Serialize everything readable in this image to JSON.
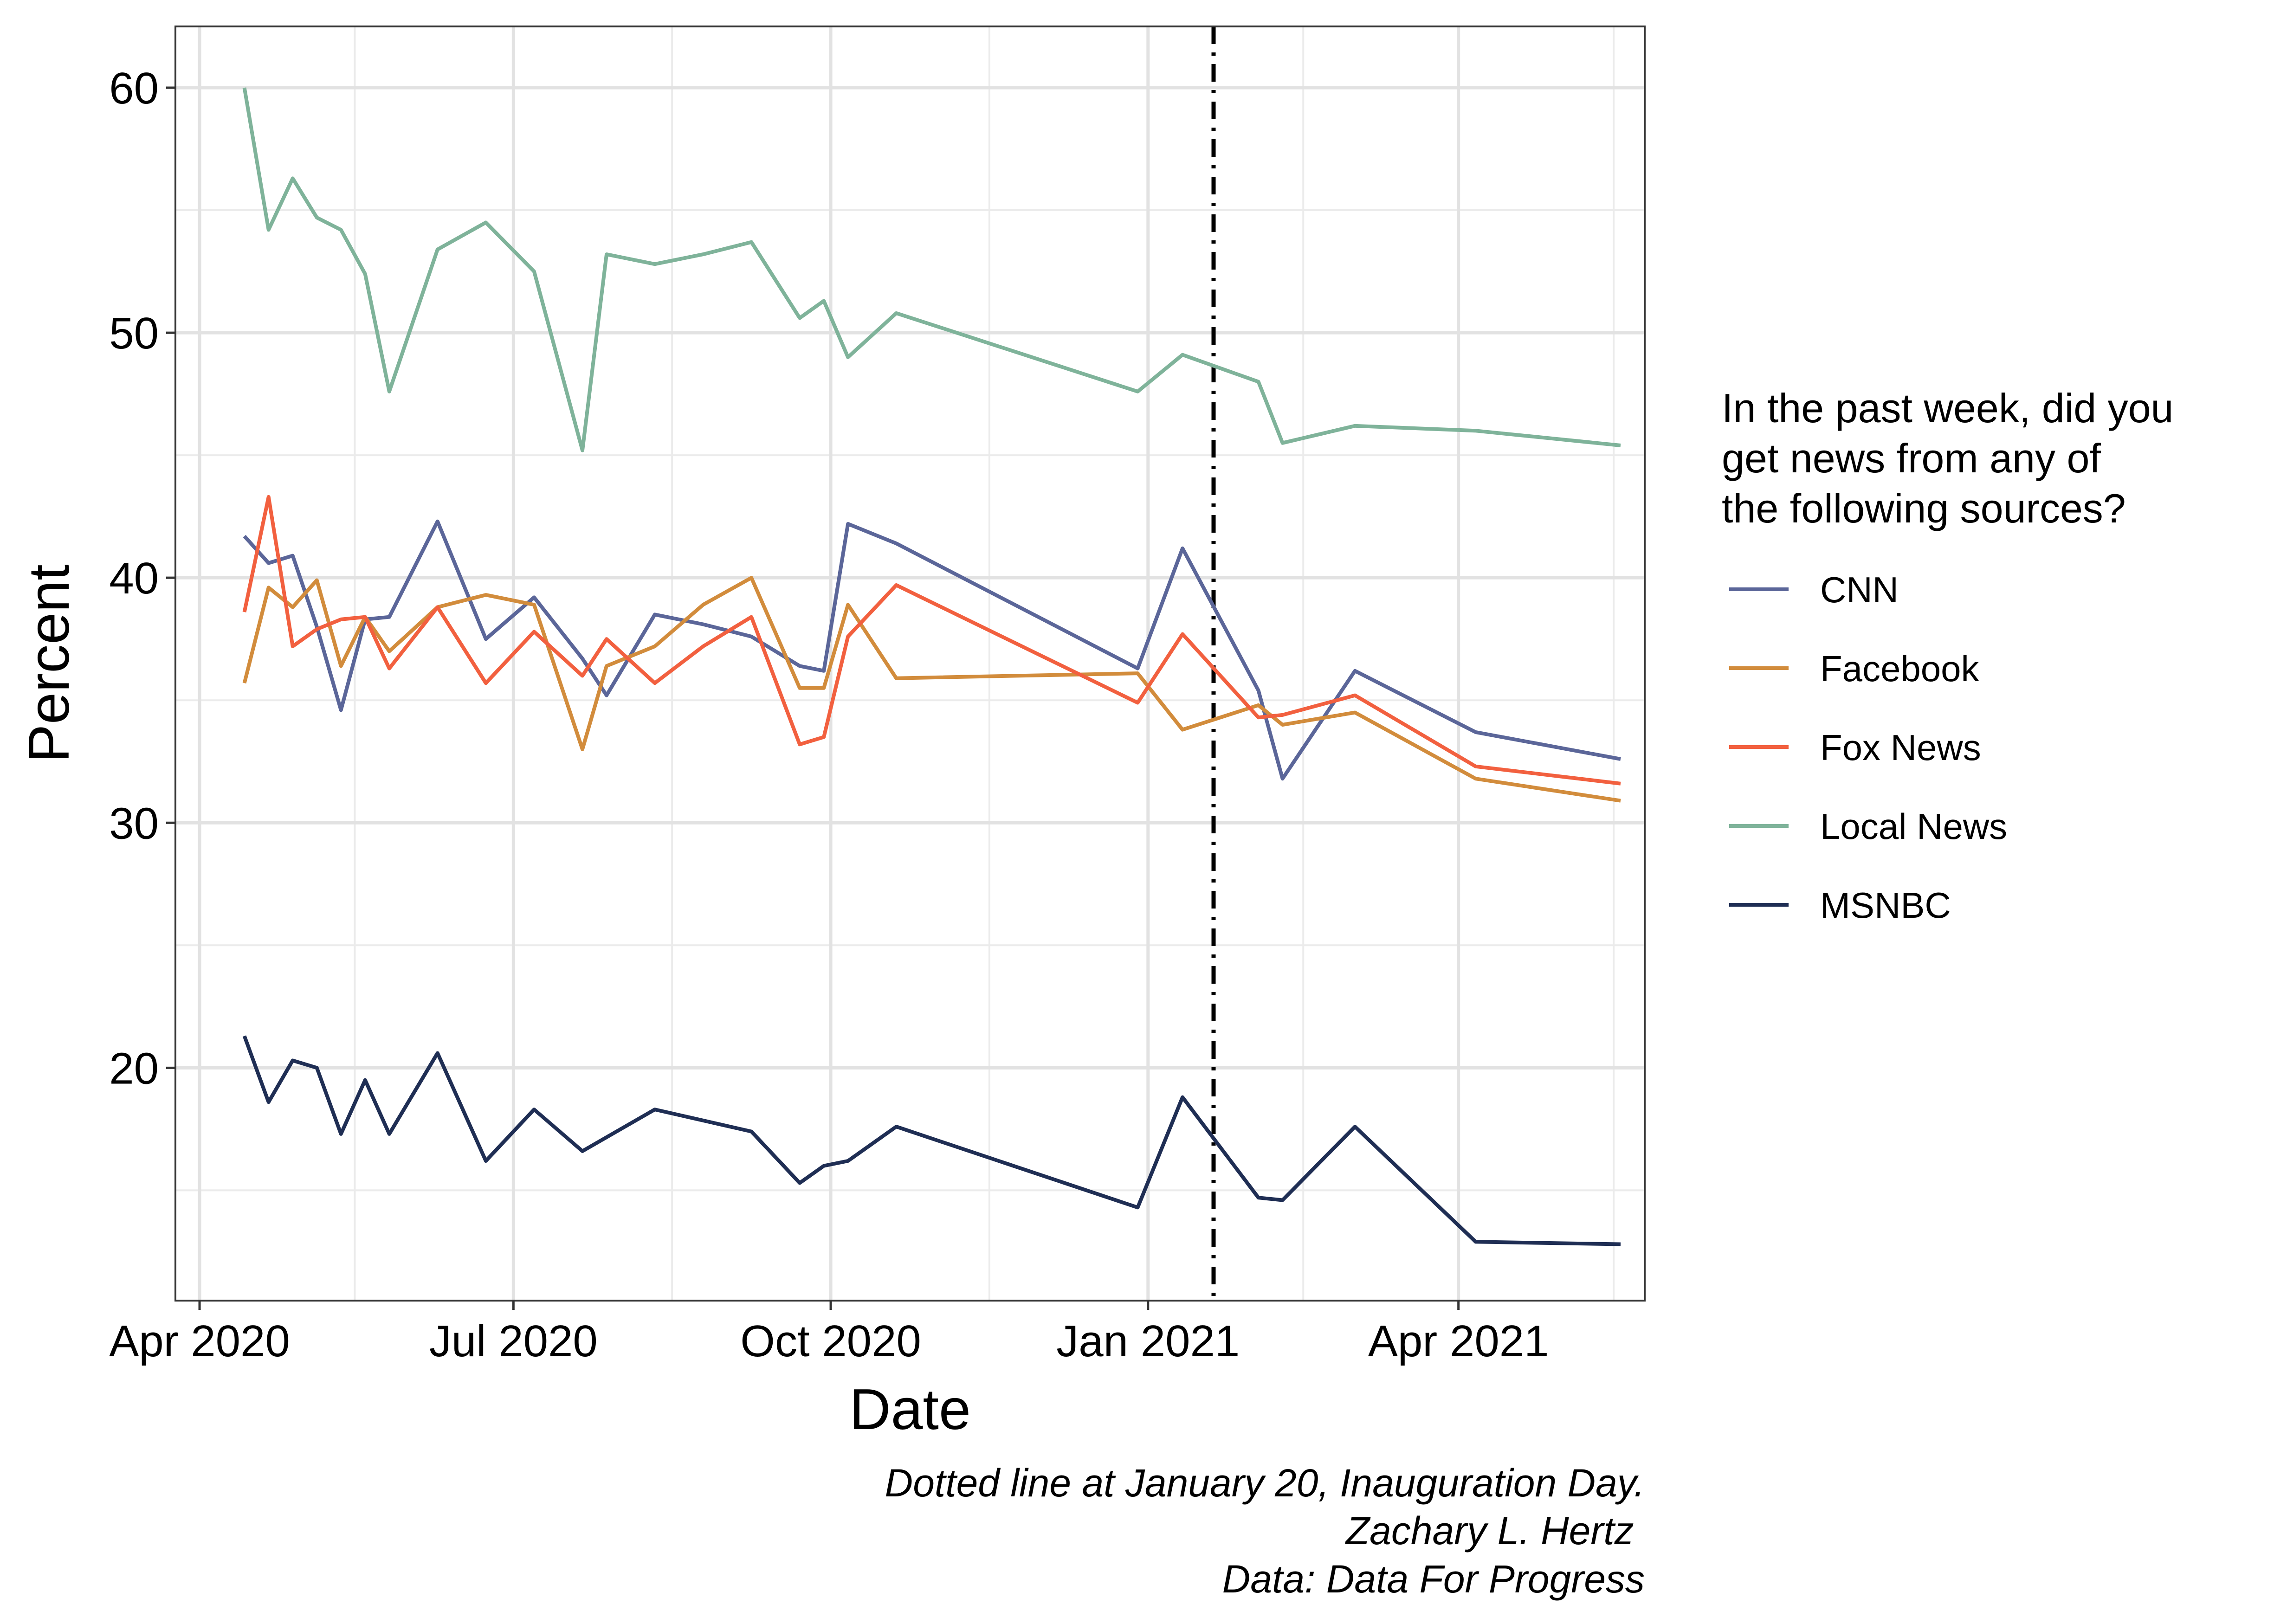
{
  "chart_data": {
    "type": "line",
    "title": "",
    "xlabel": "Date",
    "ylabel": "Percent",
    "x_axis_type": "date",
    "xlim": [
      "2020-03-25",
      "2021-05-25"
    ],
    "ylim": [
      10.5,
      62.5
    ],
    "x_ticks": [
      {
        "date": "2020-04-01",
        "label": "Apr 2020"
      },
      {
        "date": "2020-07-01",
        "label": "Jul 2020"
      },
      {
        "date": "2020-10-01",
        "label": "Oct 2020"
      },
      {
        "date": "2021-01-01",
        "label": "Jan 2021"
      },
      {
        "date": "2021-04-01",
        "label": "Apr 2021"
      }
    ],
    "x_minor_ticks": [
      "2020-05-16",
      "2020-08-16",
      "2020-11-16",
      "2021-02-15",
      "2021-05-16"
    ],
    "y_ticks": [
      20,
      30,
      40,
      50,
      60
    ],
    "y_minor_ticks": [
      15,
      25,
      35,
      45,
      55
    ],
    "grid": true,
    "legend": {
      "title": "In the past week, did you get news from any of the following sources?",
      "title_lines": [
        "In the past week, did you",
        "get news from any of",
        "the following sources?"
      ],
      "position": "right"
    },
    "reference_line": {
      "date": "2021-01-20",
      "style": "dot-dash",
      "color": "#000000"
    },
    "annotations": [
      "Dotted line at January 20, Inauguration Day.",
      "Zachary L. Hertz ",
      "Data: Data For Progress"
    ],
    "series": [
      {
        "name": "CNN",
        "color": "#5B6699",
        "points": [
          [
            "2020-04-14",
            41.7
          ],
          [
            "2020-04-21",
            40.6
          ],
          [
            "2020-04-28",
            40.9
          ],
          [
            "2020-05-05",
            38.0
          ],
          [
            "2020-05-12",
            34.6
          ],
          [
            "2020-05-19",
            38.3
          ],
          [
            "2020-05-26",
            38.4
          ],
          [
            "2020-06-09",
            42.3
          ],
          [
            "2020-06-23",
            37.5
          ],
          [
            "2020-07-07",
            39.2
          ],
          [
            "2020-07-21",
            36.7
          ],
          [
            "2020-07-28",
            35.2
          ],
          [
            "2020-08-11",
            38.5
          ],
          [
            "2020-08-25",
            38.1
          ],
          [
            "2020-09-08",
            37.6
          ],
          [
            "2020-09-22",
            36.4
          ],
          [
            "2020-09-29",
            36.2
          ],
          [
            "2020-10-06",
            42.2
          ],
          [
            "2020-10-20",
            41.4
          ],
          [
            "2020-12-29",
            36.3
          ],
          [
            "2021-01-11",
            41.2
          ],
          [
            "2021-02-02",
            35.4
          ],
          [
            "2021-02-09",
            31.8
          ],
          [
            "2021-03-02",
            36.2
          ],
          [
            "2021-04-06",
            33.7
          ],
          [
            "2021-05-18",
            32.6
          ]
        ]
      },
      {
        "name": "Facebook",
        "color": "#D28C3C",
        "points": [
          [
            "2020-04-14",
            35.7
          ],
          [
            "2020-04-21",
            39.6
          ],
          [
            "2020-04-28",
            38.8
          ],
          [
            "2020-05-05",
            39.9
          ],
          [
            "2020-05-12",
            36.4
          ],
          [
            "2020-05-19",
            38.4
          ],
          [
            "2020-05-26",
            37.0
          ],
          [
            "2020-06-09",
            38.8
          ],
          [
            "2020-06-23",
            39.3
          ],
          [
            "2020-07-07",
            38.9
          ],
          [
            "2020-07-21",
            33.0
          ],
          [
            "2020-07-28",
            36.4
          ],
          [
            "2020-08-11",
            37.2
          ],
          [
            "2020-08-25",
            38.9
          ],
          [
            "2020-09-08",
            40.0
          ],
          [
            "2020-09-22",
            35.5
          ],
          [
            "2020-09-29",
            35.5
          ],
          [
            "2020-10-06",
            38.9
          ],
          [
            "2020-10-20",
            35.9
          ],
          [
            "2020-12-29",
            36.1
          ],
          [
            "2021-01-11",
            33.8
          ],
          [
            "2021-02-02",
            34.8
          ],
          [
            "2021-02-09",
            34.0
          ],
          [
            "2021-03-02",
            34.5
          ],
          [
            "2021-04-06",
            31.8
          ],
          [
            "2021-05-18",
            30.9
          ]
        ]
      },
      {
        "name": "Fox News",
        "color": "#F2603F",
        "points": [
          [
            "2020-04-14",
            38.6
          ],
          [
            "2020-04-21",
            43.3
          ],
          [
            "2020-04-28",
            37.2
          ],
          [
            "2020-05-05",
            37.9
          ],
          [
            "2020-05-12",
            38.3
          ],
          [
            "2020-05-19",
            38.4
          ],
          [
            "2020-05-26",
            36.3
          ],
          [
            "2020-06-09",
            38.8
          ],
          [
            "2020-06-23",
            35.7
          ],
          [
            "2020-07-07",
            37.8
          ],
          [
            "2020-07-21",
            36.0
          ],
          [
            "2020-07-28",
            37.5
          ],
          [
            "2020-08-11",
            35.7
          ],
          [
            "2020-08-25",
            37.2
          ],
          [
            "2020-09-08",
            38.4
          ],
          [
            "2020-09-22",
            33.2
          ],
          [
            "2020-09-29",
            33.5
          ],
          [
            "2020-10-06",
            37.6
          ],
          [
            "2020-10-20",
            39.7
          ],
          [
            "2020-12-29",
            34.9
          ],
          [
            "2021-01-11",
            37.7
          ],
          [
            "2021-02-02",
            34.3
          ],
          [
            "2021-02-09",
            34.4
          ],
          [
            "2021-03-02",
            35.2
          ],
          [
            "2021-04-06",
            32.3
          ],
          [
            "2021-05-18",
            31.6
          ]
        ]
      },
      {
        "name": "Local News",
        "color": "#7FB39A",
        "points": [
          [
            "2020-04-14",
            60.0
          ],
          [
            "2020-04-21",
            54.2
          ],
          [
            "2020-04-28",
            56.3
          ],
          [
            "2020-05-05",
            54.7
          ],
          [
            "2020-05-12",
            54.2
          ],
          [
            "2020-05-19",
            52.4
          ],
          [
            "2020-05-26",
            47.6
          ],
          [
            "2020-06-09",
            53.4
          ],
          [
            "2020-06-23",
            54.5
          ],
          [
            "2020-07-07",
            52.5
          ],
          [
            "2020-07-21",
            45.2
          ],
          [
            "2020-07-28",
            53.2
          ],
          [
            "2020-08-11",
            52.8
          ],
          [
            "2020-08-25",
            53.2
          ],
          [
            "2020-09-08",
            53.7
          ],
          [
            "2020-09-22",
            50.6
          ],
          [
            "2020-09-29",
            51.3
          ],
          [
            "2020-10-06",
            49.0
          ],
          [
            "2020-10-20",
            50.8
          ],
          [
            "2020-12-29",
            47.6
          ],
          [
            "2021-01-11",
            49.1
          ],
          [
            "2021-02-02",
            48.0
          ],
          [
            "2021-02-09",
            45.5
          ],
          [
            "2021-03-02",
            46.2
          ],
          [
            "2021-04-06",
            46.0
          ],
          [
            "2021-05-18",
            45.4
          ]
        ]
      },
      {
        "name": "MSNBC",
        "color": "#1F2E54",
        "points": [
          [
            "2020-04-14",
            21.3
          ],
          [
            "2020-04-21",
            18.6
          ],
          [
            "2020-04-28",
            20.3
          ],
          [
            "2020-05-05",
            20.0
          ],
          [
            "2020-05-12",
            17.3
          ],
          [
            "2020-05-19",
            19.5
          ],
          [
            "2020-05-26",
            17.3
          ],
          [
            "2020-06-09",
            20.6
          ],
          [
            "2020-06-23",
            16.2
          ],
          [
            "2020-07-07",
            18.3
          ],
          [
            "2020-07-21",
            16.6
          ],
          [
            "2020-08-11",
            18.3
          ],
          [
            "2020-09-08",
            17.4
          ],
          [
            "2020-09-22",
            15.3
          ],
          [
            "2020-09-29",
            16.0
          ],
          [
            "2020-10-06",
            16.2
          ],
          [
            "2020-10-20",
            17.6
          ],
          [
            "2020-12-29",
            14.3
          ],
          [
            "2021-01-11",
            18.8
          ],
          [
            "2021-02-02",
            14.7
          ],
          [
            "2021-02-09",
            14.6
          ],
          [
            "2021-03-02",
            17.6
          ],
          [
            "2021-04-06",
            12.9
          ],
          [
            "2021-05-18",
            12.8
          ]
        ]
      }
    ]
  }
}
